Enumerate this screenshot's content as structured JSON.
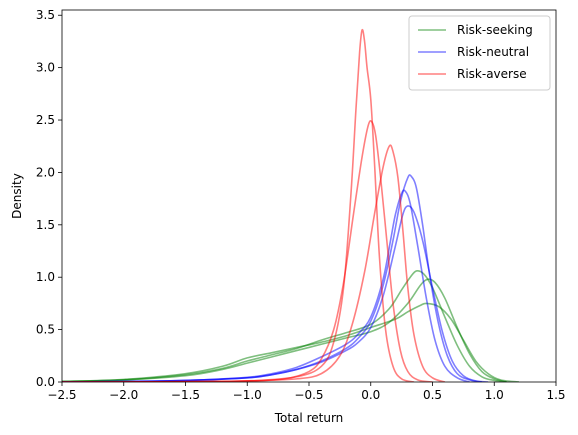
{
  "chart_data": {
    "type": "line",
    "xlabel": "Total return",
    "ylabel": "Density",
    "xlim": [
      -2.5,
      1.5
    ],
    "ylim": [
      0,
      3.55
    ],
    "xticks": [
      -2.5,
      -2.0,
      -1.5,
      -1.0,
      -0.5,
      0.0,
      0.5,
      1.0,
      1.5
    ],
    "xtick_labels": [
      "−2.5",
      "−2.0",
      "−1.5",
      "−1.0",
      "−0.5",
      "0.0",
      "0.5",
      "1.0",
      "1.5"
    ],
    "yticks": [
      0.0,
      0.5,
      1.0,
      1.5,
      2.0,
      2.5,
      3.0,
      3.5
    ],
    "ytick_labels": [
      "0.0",
      "0.5",
      "1.0",
      "1.5",
      "2.0",
      "2.5",
      "3.0",
      "3.5"
    ],
    "grid": false,
    "legend_position": "top-right",
    "legend": [
      {
        "label": "Risk-seeking",
        "color": "#008000"
      },
      {
        "label": "Risk-neutral",
        "color": "#0000ff"
      },
      {
        "label": "Risk-averse",
        "color": "#ff0000"
      }
    ],
    "series": [
      {
        "group": 0,
        "color": "#008000",
        "points": [
          [
            -2.5,
            0.005
          ],
          [
            -2.0,
            0.02
          ],
          [
            -1.5,
            0.07
          ],
          [
            -1.2,
            0.13
          ],
          [
            -1.0,
            0.2
          ],
          [
            -0.8,
            0.26
          ],
          [
            -0.6,
            0.32
          ],
          [
            -0.4,
            0.4
          ],
          [
            -0.2,
            0.47
          ],
          [
            0.0,
            0.55
          ],
          [
            0.15,
            0.7
          ],
          [
            0.25,
            0.88
          ],
          [
            0.32,
            1.0
          ],
          [
            0.37,
            1.06
          ],
          [
            0.43,
            1.03
          ],
          [
            0.5,
            0.9
          ],
          [
            0.6,
            0.62
          ],
          [
            0.7,
            0.35
          ],
          [
            0.8,
            0.15
          ],
          [
            0.9,
            0.05
          ],
          [
            1.0,
            0.015
          ],
          [
            1.1,
            0.0
          ]
        ]
      },
      {
        "group": 0,
        "color": "#008000",
        "points": [
          [
            -2.5,
            0.005
          ],
          [
            -2.0,
            0.025
          ],
          [
            -1.5,
            0.08
          ],
          [
            -1.2,
            0.15
          ],
          [
            -1.0,
            0.23
          ],
          [
            -0.8,
            0.28
          ],
          [
            -0.6,
            0.33
          ],
          [
            -0.4,
            0.38
          ],
          [
            -0.2,
            0.44
          ],
          [
            0.0,
            0.52
          ],
          [
            0.2,
            0.6
          ],
          [
            0.3,
            0.67
          ],
          [
            0.4,
            0.73
          ],
          [
            0.45,
            0.75
          ],
          [
            0.55,
            0.72
          ],
          [
            0.65,
            0.6
          ],
          [
            0.75,
            0.4
          ],
          [
            0.85,
            0.2
          ],
          [
            0.95,
            0.08
          ],
          [
            1.05,
            0.02
          ],
          [
            1.2,
            0.0
          ]
        ]
      },
      {
        "group": 0,
        "color": "#008000",
        "points": [
          [
            -2.5,
            0.005
          ],
          [
            -2.0,
            0.02
          ],
          [
            -1.5,
            0.06
          ],
          [
            -1.2,
            0.12
          ],
          [
            -1.0,
            0.18
          ],
          [
            -0.8,
            0.24
          ],
          [
            -0.6,
            0.3
          ],
          [
            -0.4,
            0.36
          ],
          [
            -0.2,
            0.42
          ],
          [
            0.0,
            0.48
          ],
          [
            0.15,
            0.57
          ],
          [
            0.3,
            0.75
          ],
          [
            0.4,
            0.92
          ],
          [
            0.46,
            0.98
          ],
          [
            0.52,
            0.95
          ],
          [
            0.6,
            0.8
          ],
          [
            0.7,
            0.52
          ],
          [
            0.8,
            0.27
          ],
          [
            0.9,
            0.1
          ],
          [
            1.0,
            0.03
          ],
          [
            1.1,
            0.0
          ]
        ]
      },
      {
        "group": 1,
        "color": "#0000ff",
        "points": [
          [
            -2.5,
            0.0
          ],
          [
            -2.0,
            0.005
          ],
          [
            -1.5,
            0.015
          ],
          [
            -1.0,
            0.04
          ],
          [
            -0.8,
            0.07
          ],
          [
            -0.6,
            0.12
          ],
          [
            -0.4,
            0.2
          ],
          [
            -0.2,
            0.32
          ],
          [
            -0.1,
            0.42
          ],
          [
            0.0,
            0.58
          ],
          [
            0.1,
            0.92
          ],
          [
            0.18,
            1.35
          ],
          [
            0.24,
            1.72
          ],
          [
            0.3,
            1.95
          ],
          [
            0.33,
            1.96
          ],
          [
            0.37,
            1.85
          ],
          [
            0.42,
            1.5
          ],
          [
            0.48,
            1.0
          ],
          [
            0.55,
            0.55
          ],
          [
            0.62,
            0.25
          ],
          [
            0.7,
            0.08
          ],
          [
            0.8,
            0.02
          ],
          [
            0.9,
            0.0
          ]
        ]
      },
      {
        "group": 1,
        "color": "#0000ff",
        "points": [
          [
            -2.5,
            0.0
          ],
          [
            -2.0,
            0.005
          ],
          [
            -1.5,
            0.015
          ],
          [
            -1.0,
            0.04
          ],
          [
            -0.8,
            0.07
          ],
          [
            -0.6,
            0.12
          ],
          [
            -0.4,
            0.19
          ],
          [
            -0.2,
            0.3
          ],
          [
            -0.1,
            0.38
          ],
          [
            0.0,
            0.52
          ],
          [
            0.1,
            0.82
          ],
          [
            0.2,
            1.3
          ],
          [
            0.26,
            1.6
          ],
          [
            0.3,
            1.68
          ],
          [
            0.35,
            1.62
          ],
          [
            0.42,
            1.35
          ],
          [
            0.5,
            0.9
          ],
          [
            0.58,
            0.48
          ],
          [
            0.66,
            0.2
          ],
          [
            0.75,
            0.06
          ],
          [
            0.85,
            0.01
          ],
          [
            0.95,
            0.0
          ]
        ]
      },
      {
        "group": 1,
        "color": "#0000ff",
        "points": [
          [
            -2.5,
            0.0
          ],
          [
            -2.0,
            0.005
          ],
          [
            -1.5,
            0.015
          ],
          [
            -1.0,
            0.045
          ],
          [
            -0.8,
            0.08
          ],
          [
            -0.6,
            0.14
          ],
          [
            -0.4,
            0.24
          ],
          [
            -0.2,
            0.36
          ],
          [
            -0.1,
            0.46
          ],
          [
            0.0,
            0.62
          ],
          [
            0.1,
            0.98
          ],
          [
            0.16,
            1.35
          ],
          [
            0.2,
            1.6
          ],
          [
            0.25,
            1.8
          ],
          [
            0.28,
            1.82
          ],
          [
            0.32,
            1.7
          ],
          [
            0.38,
            1.3
          ],
          [
            0.45,
            0.8
          ],
          [
            0.52,
            0.4
          ],
          [
            0.6,
            0.15
          ],
          [
            0.7,
            0.04
          ],
          [
            0.8,
            0.0
          ]
        ]
      },
      {
        "group": 2,
        "color": "#ff0000",
        "points": [
          [
            -2.5,
            0.0
          ],
          [
            -1.5,
            0.003
          ],
          [
            -1.0,
            0.01
          ],
          [
            -0.6,
            0.05
          ],
          [
            -0.4,
            0.15
          ],
          [
            -0.3,
            0.38
          ],
          [
            -0.22,
            0.9
          ],
          [
            -0.16,
            1.8
          ],
          [
            -0.12,
            2.6
          ],
          [
            -0.09,
            3.15
          ],
          [
            -0.07,
            3.36
          ],
          [
            -0.05,
            3.25
          ],
          [
            -0.03,
            3.0
          ],
          [
            0.0,
            2.7
          ],
          [
            0.03,
            2.1
          ],
          [
            0.07,
            1.2
          ],
          [
            0.12,
            0.5
          ],
          [
            0.18,
            0.15
          ],
          [
            0.25,
            0.03
          ],
          [
            0.35,
            0.0
          ]
        ]
      },
      {
        "group": 2,
        "color": "#ff0000",
        "points": [
          [
            -2.5,
            0.0
          ],
          [
            -1.5,
            0.003
          ],
          [
            -1.0,
            0.01
          ],
          [
            -0.7,
            0.03
          ],
          [
            -0.5,
            0.1
          ],
          [
            -0.4,
            0.22
          ],
          [
            -0.3,
            0.5
          ],
          [
            -0.22,
            0.95
          ],
          [
            -0.14,
            1.6
          ],
          [
            -0.07,
            2.15
          ],
          [
            -0.02,
            2.45
          ],
          [
            0.01,
            2.48
          ],
          [
            0.04,
            2.35
          ],
          [
            0.08,
            1.95
          ],
          [
            0.13,
            1.35
          ],
          [
            0.18,
            0.75
          ],
          [
            0.24,
            0.3
          ],
          [
            0.3,
            0.1
          ],
          [
            0.38,
            0.02
          ],
          [
            0.5,
            0.0
          ]
        ]
      },
      {
        "group": 2,
        "color": "#ff0000",
        "points": [
          [
            -2.5,
            0.0
          ],
          [
            -1.5,
            0.003
          ],
          [
            -1.0,
            0.01
          ],
          [
            -0.6,
            0.03
          ],
          [
            -0.4,
            0.08
          ],
          [
            -0.25,
            0.25
          ],
          [
            -0.15,
            0.55
          ],
          [
            -0.05,
            1.05
          ],
          [
            0.03,
            1.6
          ],
          [
            0.1,
            2.05
          ],
          [
            0.15,
            2.25
          ],
          [
            0.18,
            2.2
          ],
          [
            0.22,
            1.95
          ],
          [
            0.26,
            1.45
          ],
          [
            0.3,
            0.9
          ],
          [
            0.35,
            0.45
          ],
          [
            0.42,
            0.15
          ],
          [
            0.5,
            0.04
          ],
          [
            0.6,
            0.0
          ]
        ]
      }
    ]
  }
}
